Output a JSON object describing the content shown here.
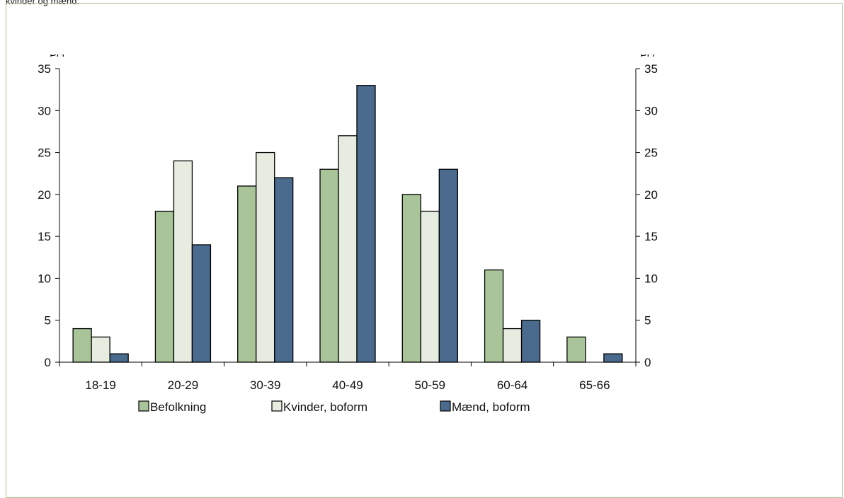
{
  "caption": "kvinder og mænd.",
  "colors": {
    "frame": "#a8c08e",
    "befolkning": "#a8c498",
    "kvinder": "#e6ece0",
    "maend": "#4a6a8e"
  },
  "chart_data": {
    "type": "bar",
    "title": "",
    "ylabel_left": "Pct.",
    "ylabel_right": "Pct.",
    "ylim": [
      0,
      35
    ],
    "yticks": [
      0,
      5,
      10,
      15,
      20,
      25,
      30,
      35
    ],
    "categories": [
      "18-19",
      "20-29",
      "30-39",
      "40-49",
      "50-59",
      "60-64",
      "65-66"
    ],
    "series": [
      {
        "name": "Befolkning",
        "color": "#a8c498",
        "values": [
          4,
          18,
          21,
          23,
          20,
          11,
          3
        ]
      },
      {
        "name": "Kvinder, boform",
        "color": "#e6ece0",
        "values": [
          3,
          24,
          25,
          27,
          18,
          4,
          0
        ]
      },
      {
        "name": "Mænd, boform",
        "color": "#4a6a8e",
        "values": [
          1,
          14,
          22,
          33,
          23,
          5,
          1
        ]
      }
    ],
    "grid": false,
    "legend_position": "bottom"
  }
}
